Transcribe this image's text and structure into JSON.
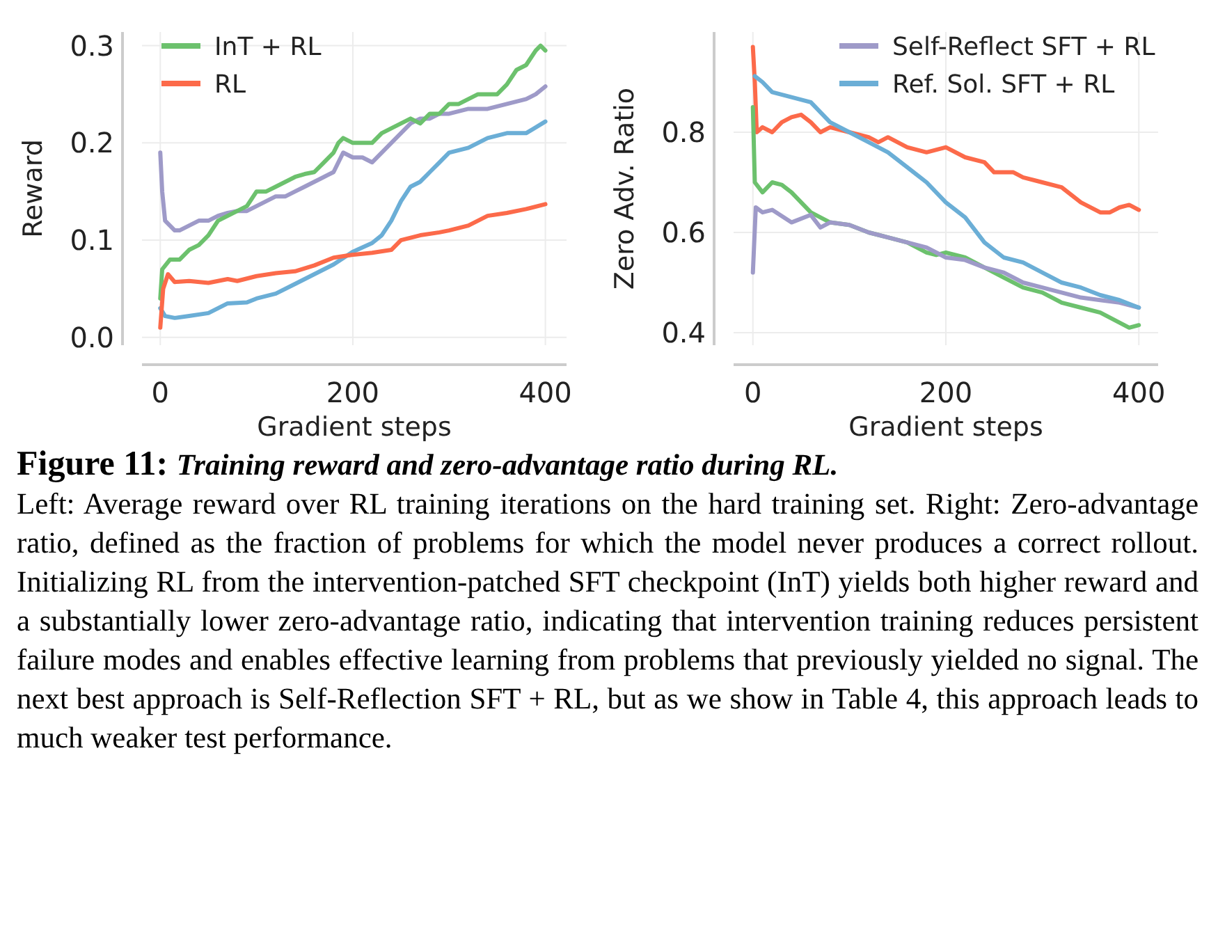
{
  "chart_data": [
    {
      "type": "line",
      "xlabel": "Gradient steps",
      "ylabel": "Reward",
      "xlim": [
        -19,
        422
      ],
      "ylim": [
        -0.008,
        0.314
      ],
      "xticks": [
        0,
        200,
        400
      ],
      "yticks": [
        {
          "value": 0,
          "label": "0.0"
        },
        0.1,
        0.2,
        0.3
      ],
      "grid": true,
      "legend": "top left",
      "line_style": "solid",
      "annotations": [
        "Figure 11: Training reward and zero-advantage ratio during RL.",
        "Left: Average reward over RL training iterations on the hard training set. Right: Zero-advantage ratio, defined as the fraction of problems for which the model never produces a correct rollout. Initializing RL from the intervention-patched SFT checkpoint (InT) yields both higher reward and a substantially lower zero-advantage ratio, indicating that intervention training reduces persistent failure modes and enables effective learning from problems that previously yielded no signal. The next best approach is Self-Reflection SFT + RL, but as we show in Table 4, this approach leads to much weaker test performance."
      ],
      "series": [
        {
          "color": "#9e9ac8",
          "x": [
            0,
            2,
            5,
            10,
            15,
            20,
            30,
            40,
            50,
            60,
            70,
            80,
            90,
            100,
            110,
            120,
            130,
            140,
            150,
            160,
            170,
            180,
            190,
            200,
            210,
            220,
            230,
            240,
            250,
            260,
            270,
            280,
            290,
            300,
            320,
            340,
            360,
            380,
            390,
            400
          ],
          "values": [
            0.19,
            0.15,
            0.12,
            0.115,
            0.11,
            0.11,
            0.115,
            0.12,
            0.12,
            0.125,
            0.128,
            0.13,
            0.13,
            0.135,
            0.14,
            0.145,
            0.145,
            0.15,
            0.155,
            0.16,
            0.165,
            0.17,
            0.19,
            0.185,
            0.185,
            0.18,
            0.19,
            0.2,
            0.21,
            0.22,
            0.225,
            0.225,
            0.23,
            0.23,
            0.235,
            0.235,
            0.24,
            0.245,
            0.25,
            0.258
          ]
        },
        {
          "color": "#6baed6",
          "x": [
            0,
            5,
            15,
            30,
            50,
            60,
            70,
            90,
            100,
            120,
            140,
            160,
            180,
            200,
            220,
            230,
            240,
            250,
            260,
            270,
            280,
            290,
            300,
            320,
            340,
            360,
            380,
            400
          ],
          "values": [
            0.03,
            0.022,
            0.02,
            0.022,
            0.025,
            0.03,
            0.035,
            0.036,
            0.04,
            0.045,
            0.055,
            0.065,
            0.075,
            0.088,
            0.097,
            0.105,
            0.12,
            0.14,
            0.155,
            0.16,
            0.17,
            0.18,
            0.19,
            0.195,
            0.205,
            0.21,
            0.21,
            0.222
          ]
        },
        {
          "name": "InT + RL",
          "color": "#6cc16d",
          "x": [
            0,
            2,
            10,
            20,
            30,
            40,
            50,
            60,
            70,
            80,
            90,
            100,
            110,
            120,
            130,
            140,
            150,
            160,
            170,
            180,
            185,
            190,
            200,
            210,
            220,
            230,
            240,
            250,
            260,
            270,
            280,
            290,
            300,
            310,
            320,
            330,
            340,
            350,
            360,
            370,
            380,
            390,
            395,
            400
          ],
          "values": [
            0.04,
            0.07,
            0.08,
            0.08,
            0.09,
            0.095,
            0.105,
            0.12,
            0.125,
            0.13,
            0.135,
            0.15,
            0.15,
            0.155,
            0.16,
            0.165,
            0.168,
            0.17,
            0.18,
            0.19,
            0.2,
            0.205,
            0.2,
            0.2,
            0.2,
            0.21,
            0.215,
            0.22,
            0.225,
            0.22,
            0.23,
            0.23,
            0.24,
            0.24,
            0.245,
            0.25,
            0.25,
            0.25,
            0.26,
            0.275,
            0.28,
            0.295,
            0.3,
            0.295
          ]
        },
        {
          "name": "RL",
          "color": "#fc6a4a",
          "x": [
            0,
            3,
            8,
            15,
            30,
            50,
            70,
            80,
            100,
            120,
            140,
            160,
            180,
            200,
            220,
            240,
            250,
            270,
            290,
            300,
            320,
            340,
            360,
            380,
            400
          ],
          "values": [
            0.01,
            0.05,
            0.065,
            0.057,
            0.058,
            0.056,
            0.06,
            0.058,
            0.063,
            0.066,
            0.068,
            0.074,
            0.082,
            0.085,
            0.087,
            0.09,
            0.1,
            0.105,
            0.108,
            0.11,
            0.115,
            0.125,
            0.128,
            0.132,
            0.137
          ]
        }
      ]
    },
    {
      "type": "line",
      "xlabel": "Gradient steps",
      "ylabel": "Zero Adv. Ratio",
      "xlim": [
        -20,
        420
      ],
      "ylim": [
        0.375,
        1.0
      ],
      "xticks": [
        0,
        200,
        400
      ],
      "yticks": [
        0.4,
        0.6,
        0.8
      ],
      "grid": true,
      "legend": "top right",
      "line_style": "solid",
      "series": [
        {
          "color": "#fc6a4a",
          "x": [
            0,
            2,
            4,
            10,
            20,
            30,
            40,
            50,
            60,
            70,
            80,
            100,
            120,
            130,
            140,
            160,
            180,
            200,
            220,
            240,
            250,
            270,
            280,
            300,
            320,
            340,
            360,
            370,
            380,
            390,
            400
          ],
          "values": [
            0.97,
            0.9,
            0.8,
            0.81,
            0.8,
            0.82,
            0.83,
            0.835,
            0.82,
            0.8,
            0.81,
            0.8,
            0.79,
            0.78,
            0.79,
            0.77,
            0.76,
            0.77,
            0.75,
            0.74,
            0.72,
            0.72,
            0.71,
            0.7,
            0.69,
            0.66,
            0.64,
            0.64,
            0.65,
            0.655,
            0.645
          ]
        },
        {
          "color": "#6cc16d",
          "x": [
            0,
            2,
            10,
            20,
            30,
            40,
            60,
            80,
            100,
            120,
            140,
            160,
            180,
            190,
            200,
            220,
            240,
            260,
            280,
            300,
            320,
            340,
            360,
            380,
            390,
            400
          ],
          "values": [
            0.85,
            0.7,
            0.68,
            0.7,
            0.695,
            0.68,
            0.64,
            0.62,
            0.615,
            0.6,
            0.59,
            0.58,
            0.56,
            0.555,
            0.56,
            0.55,
            0.53,
            0.51,
            0.49,
            0.48,
            0.46,
            0.45,
            0.44,
            0.42,
            0.41,
            0.415
          ]
        },
        {
          "name": "Self-Reflect SFT + RL",
          "color": "#9e9ac8",
          "x": [
            0,
            3,
            10,
            20,
            40,
            60,
            70,
            80,
            100,
            120,
            140,
            160,
            180,
            200,
            220,
            240,
            260,
            280,
            300,
            320,
            340,
            360,
            380,
            400
          ],
          "values": [
            0.52,
            0.65,
            0.64,
            0.645,
            0.62,
            0.635,
            0.61,
            0.62,
            0.615,
            0.6,
            0.59,
            0.58,
            0.57,
            0.55,
            0.545,
            0.53,
            0.52,
            0.5,
            0.49,
            0.48,
            0.47,
            0.465,
            0.46,
            0.45
          ]
        },
        {
          "name": "Ref. Sol. SFT + RL",
          "color": "#6baed6",
          "x": [
            2,
            10,
            20,
            40,
            60,
            80,
            100,
            120,
            140,
            160,
            180,
            200,
            220,
            240,
            260,
            280,
            300,
            320,
            340,
            360,
            380,
            400
          ],
          "values": [
            0.912,
            0.9,
            0.88,
            0.87,
            0.86,
            0.82,
            0.8,
            0.78,
            0.76,
            0.73,
            0.7,
            0.66,
            0.63,
            0.58,
            0.55,
            0.54,
            0.52,
            0.5,
            0.49,
            0.475,
            0.465,
            0.45
          ]
        }
      ]
    }
  ]
}
